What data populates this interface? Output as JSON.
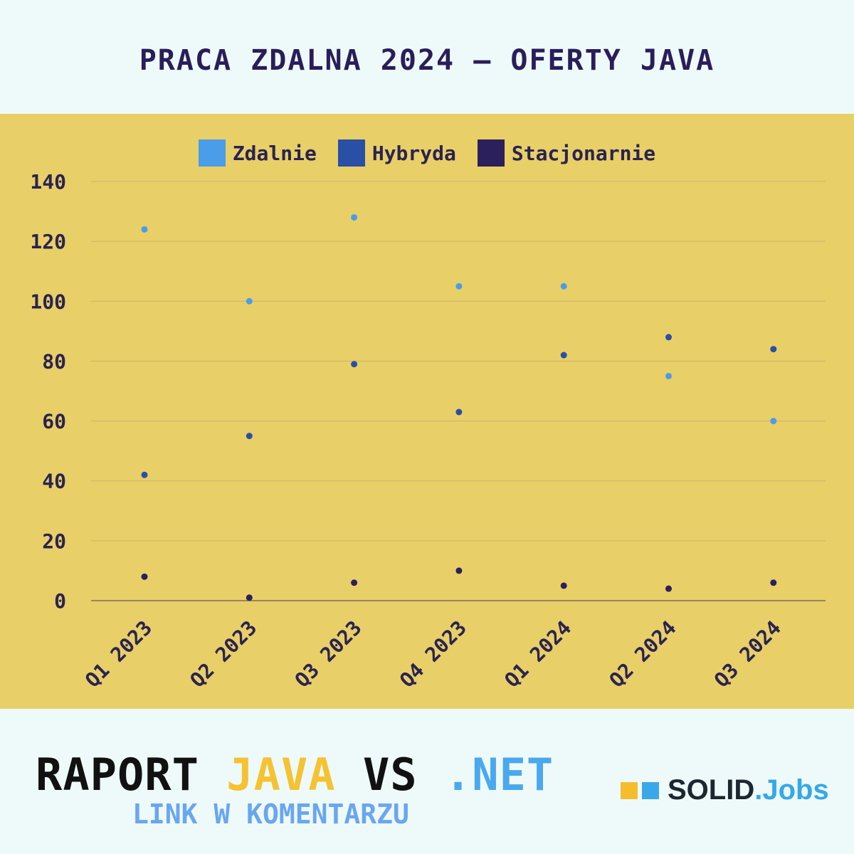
{
  "title": "PRACA ZDALNA 2024 – OFERTY JAVA",
  "chart_data": {
    "type": "scatter",
    "categories": [
      "Q1 2023",
      "Q2 2023",
      "Q3 2023",
      "Q4 2023",
      "Q1 2024",
      "Q2 2024",
      "Q3 2024"
    ],
    "series": [
      {
        "name": "Zdalnie",
        "color": "#4a9de8",
        "values": [
          124,
          100,
          128,
          105,
          105,
          75,
          60
        ]
      },
      {
        "name": "Hybryda",
        "color": "#2a4fa6",
        "values": [
          42,
          55,
          79,
          63,
          82,
          88,
          84
        ]
      },
      {
        "name": "Stacjonarnie",
        "color": "#2b1f5c",
        "values": [
          8,
          1,
          6,
          10,
          5,
          4,
          6
        ]
      }
    ],
    "yticks": [
      "0",
      "20",
      "40",
      "60",
      "80",
      "100",
      "120",
      "140"
    ],
    "ylim": [
      0,
      140
    ],
    "grid": true,
    "legend": "top-center"
  },
  "footer": {
    "raport": "RAPORT",
    "java": "JAVA",
    "vs": "VS",
    "net": ".NET",
    "sub": "LINK W KOMENTARZU"
  },
  "brand": {
    "solid": "SOLID",
    "jobs": ".Jobs",
    "sq1_color": "#f5bd2e",
    "sq2_color": "#3aa8e8"
  }
}
